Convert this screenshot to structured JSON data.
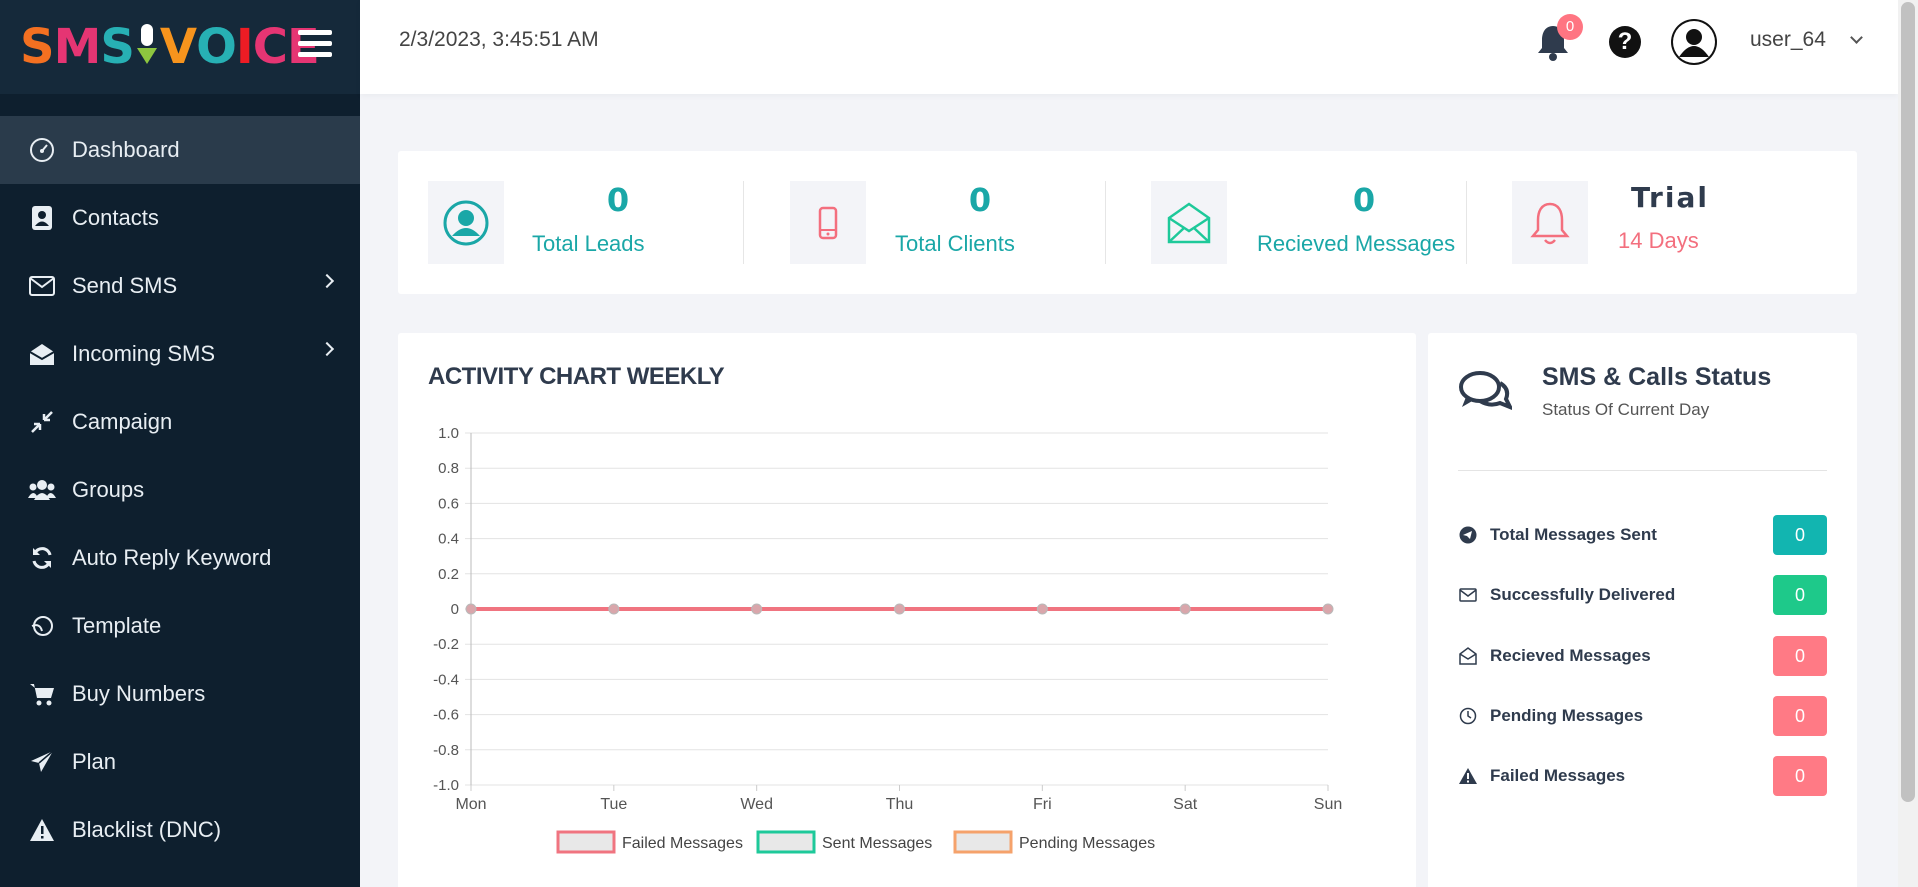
{
  "sidebar": {
    "logo_text": "SMSVOICE",
    "items": [
      {
        "label": "Dashboard",
        "icon": "gauge-icon",
        "active": true,
        "submenu": false
      },
      {
        "label": "Contacts",
        "icon": "address-book-icon",
        "active": false,
        "submenu": false
      },
      {
        "label": "Send SMS",
        "icon": "envelope-icon",
        "active": false,
        "submenu": true
      },
      {
        "label": "Incoming SMS",
        "icon": "envelope-open-icon",
        "active": false,
        "submenu": true
      },
      {
        "label": "Campaign",
        "icon": "compress-arrows-icon",
        "active": false,
        "submenu": false
      },
      {
        "label": "Groups",
        "icon": "users-icon",
        "active": false,
        "submenu": false
      },
      {
        "label": "Auto Reply Keyword",
        "icon": "sync-icon",
        "active": false,
        "submenu": false
      },
      {
        "label": "Template",
        "icon": "template-icon",
        "active": false,
        "submenu": false
      },
      {
        "label": "Buy Numbers",
        "icon": "cart-icon",
        "active": false,
        "submenu": false
      },
      {
        "label": "Plan",
        "icon": "paper-plane-icon",
        "active": false,
        "submenu": false
      },
      {
        "label": "Blacklist (DNC)",
        "icon": "warning-icon",
        "active": false,
        "submenu": false
      }
    ]
  },
  "header": {
    "datetime": "2/3/2023, 3:45:51 AM",
    "notification_count": "0",
    "help_glyph": "?",
    "username": "user_64"
  },
  "stats": {
    "leads": {
      "value": "0",
      "label": "Total Leads"
    },
    "clients": {
      "value": "0",
      "label": "Total Clients"
    },
    "received": {
      "value": "0",
      "label": "Recieved Messages"
    },
    "trial": {
      "value": "Trial",
      "label": "14 Days"
    }
  },
  "activity": {
    "title": "ACTIVITY CHART WEEKLY"
  },
  "chart_data": {
    "type": "line",
    "title": "ACTIVITY CHART WEEKLY",
    "categories": [
      "Mon",
      "Tue",
      "Wed",
      "Thu",
      "Fri",
      "Sat",
      "Sun"
    ],
    "ylim": [
      -1.0,
      1.0
    ],
    "yticks": [
      "1.0",
      "0.8",
      "0.6",
      "0.4",
      "0.2",
      "0",
      "-0.2",
      "-0.4",
      "-0.6",
      "-0.8",
      "-1.0"
    ],
    "grid": true,
    "legend": "bottom",
    "series": [
      {
        "name": "Failed Messages",
        "values": [
          0,
          0,
          0,
          0,
          0,
          0,
          0
        ],
        "color": "#f07480"
      },
      {
        "name": "Sent Messages",
        "values": [
          0,
          0,
          0,
          0,
          0,
          0,
          0
        ],
        "color": "#1ec99a"
      },
      {
        "name": "Pending Messages",
        "values": [
          0,
          0,
          0,
          0,
          0,
          0,
          0
        ],
        "color": "#f5a26b"
      }
    ]
  },
  "status": {
    "title": "SMS & Calls Status",
    "subtitle": "Status Of Current Day",
    "rows": [
      {
        "label": "Total Messages Sent",
        "value": "0",
        "icon": "telegram-icon",
        "color": "#12b5b0"
      },
      {
        "label": "Successfully Delivered",
        "value": "0",
        "icon": "envelope-icon",
        "color": "#1ec98a"
      },
      {
        "label": "Recieved Messages",
        "value": "0",
        "icon": "envelope-open-icon",
        "color": "#ff7a85"
      },
      {
        "label": "Pending Messages",
        "value": "0",
        "icon": "clock-icon",
        "color": "#ff7a85"
      },
      {
        "label": "Failed Messages",
        "value": "0",
        "icon": "warning-icon",
        "color": "#ff7a85"
      }
    ]
  }
}
